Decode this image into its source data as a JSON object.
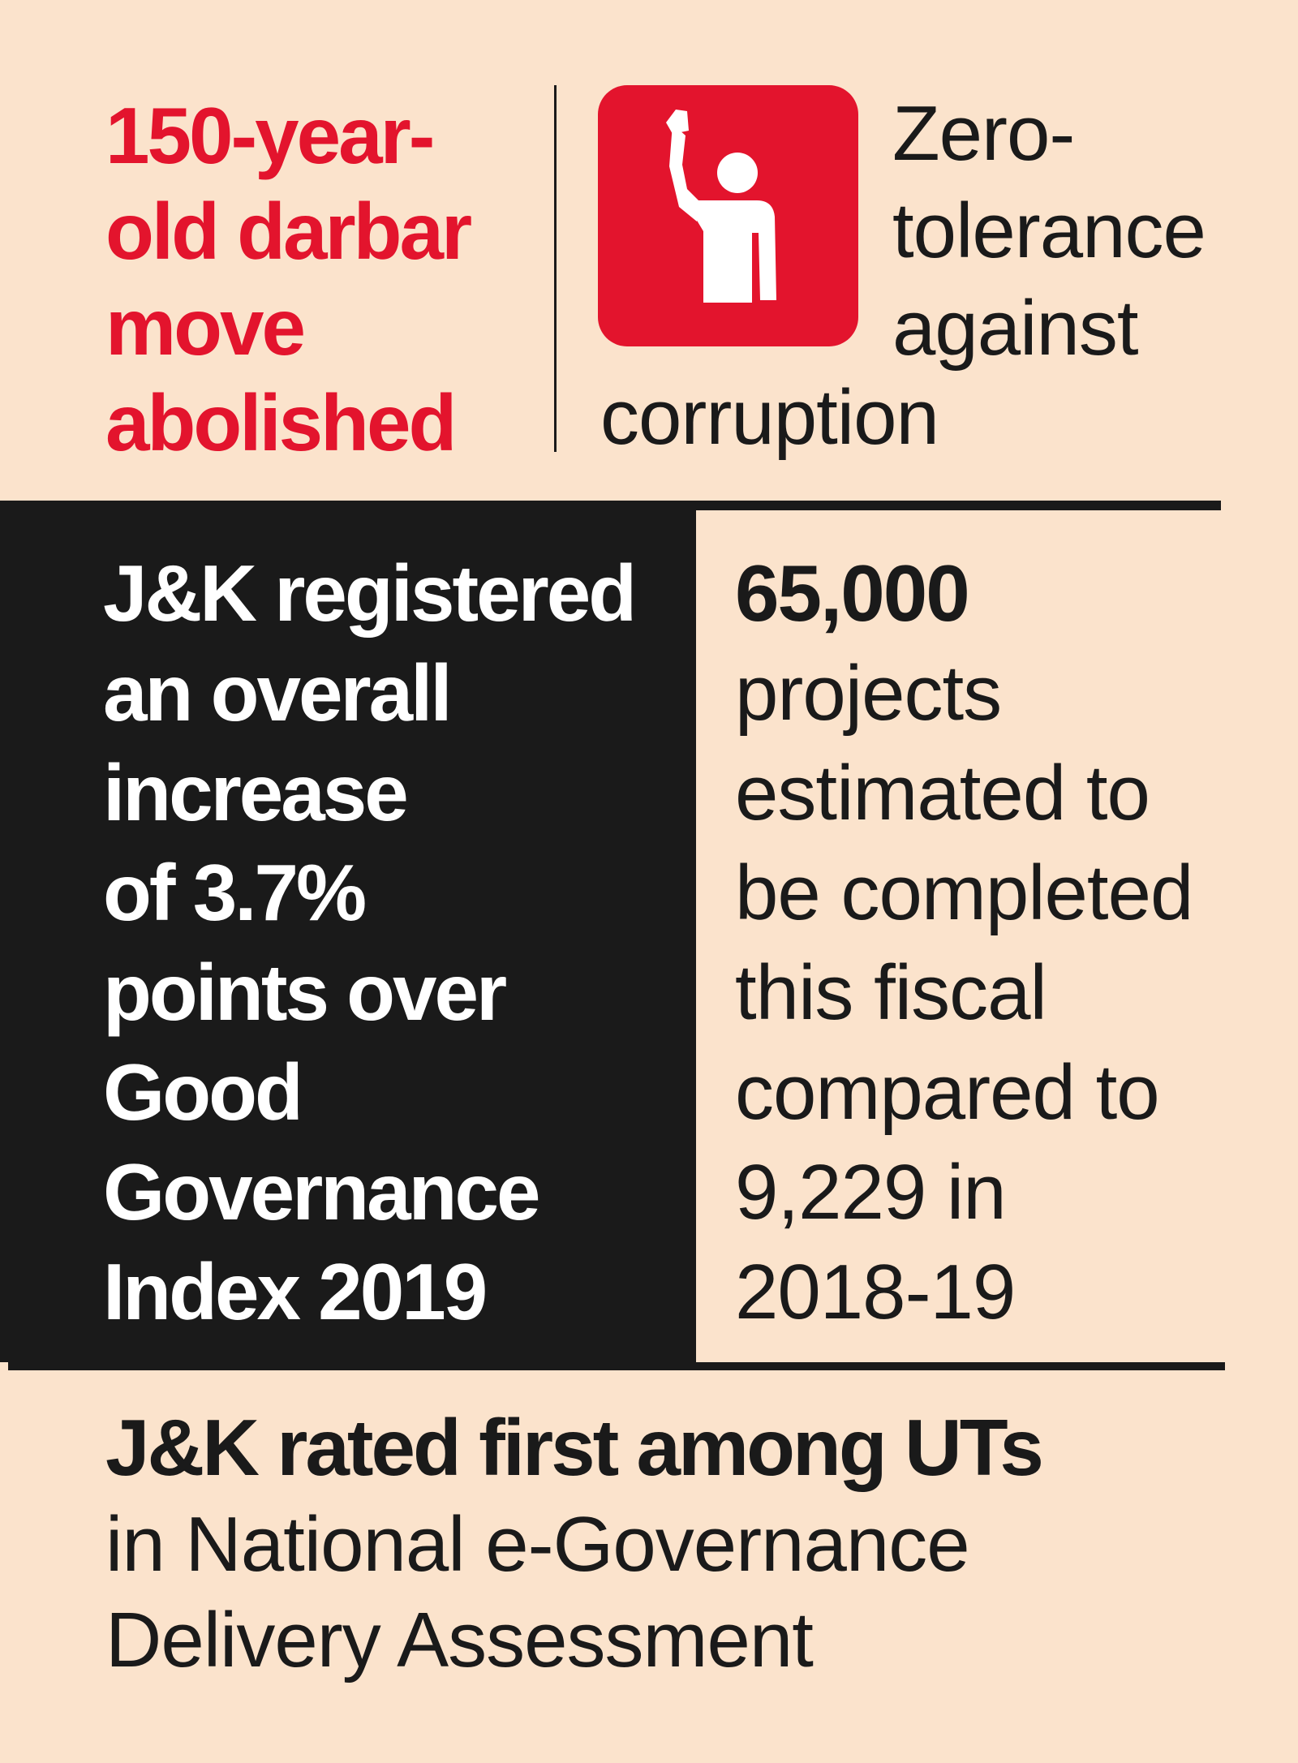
{
  "colors": {
    "background": "#fbe3cc",
    "accent_red": "#e3142d",
    "dark": "#1a1a1a",
    "white": "#ffffff"
  },
  "top_left": {
    "lines": [
      "150-year-",
      "old darbar",
      "move",
      "abolished"
    ]
  },
  "top_right": {
    "icon": "raised-hand-person-icon",
    "lines": [
      "Zero-",
      "tolerance",
      "against"
    ],
    "last_line": "corruption"
  },
  "middle_left": {
    "lines": [
      "J&K registered",
      "an overall",
      "increase",
      "of 3.7%",
      "points over",
      "Good",
      "Governance",
      "Index 2019"
    ]
  },
  "middle_right": {
    "number": "65,000",
    "lines": [
      "projects",
      "estimated to",
      "be completed",
      "this fiscal",
      "compared to",
      "9,229 in",
      "2018-19"
    ]
  },
  "bottom": {
    "bold": "J&K rated first among UTs",
    "lines": [
      "in National e-Governance",
      "Delivery Assessment"
    ]
  }
}
